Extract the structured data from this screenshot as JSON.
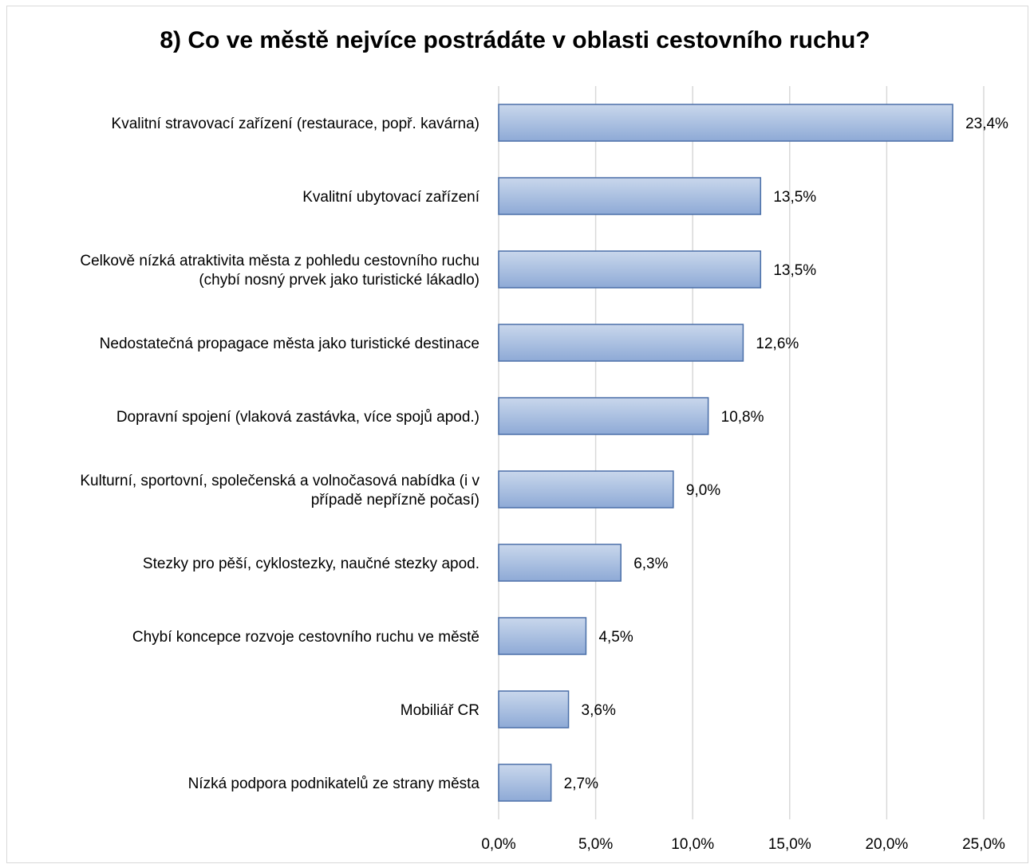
{
  "chart_data": {
    "type": "bar",
    "orientation": "horizontal",
    "title": "8) Co ve městě nejvíce postrádáte v oblasti cestovního ruchu?",
    "categories": [
      [
        "Kvalitní stravovací zařízení (restaurace, popř. kavárna)"
      ],
      [
        "Kvalitní ubytovací zařízení"
      ],
      [
        "Celkově nízká atraktivita města z pohledu cestovního ruchu",
        "(chybí nosný prvek jako turistické lákadlo)"
      ],
      [
        "Nedostatečná propagace města jako turistické destinace"
      ],
      [
        "Dopravní spojení (vlaková zastávka, více spojů apod.)"
      ],
      [
        "Kulturní, sportovní, společenská a volnočasová nabídka (i v",
        "případě nepřízně počasí)"
      ],
      [
        "Stezky pro pěší, cyklostezky, naučné stezky apod."
      ],
      [
        "Chybí koncepce rozvoje cestovního ruchu ve městě"
      ],
      [
        "Mobiliář CR"
      ],
      [
        "Nízká podpora podnikatelů ze strany města"
      ]
    ],
    "values": [
      23.4,
      13.5,
      13.5,
      12.6,
      10.8,
      9.0,
      6.3,
      4.5,
      3.6,
      2.7
    ],
    "value_labels": [
      "23,4%",
      "13,5%",
      "13,5%",
      "12,6%",
      "10,8%",
      "9,0%",
      "6,3%",
      "4,5%",
      "3,6%",
      "2,7%"
    ],
    "xlim": [
      0,
      25
    ],
    "x_ticks": [
      0,
      5,
      10,
      15,
      20,
      25
    ],
    "x_tick_labels": [
      "0,0%",
      "5,0%",
      "10,0%",
      "15,0%",
      "20,0%",
      "25,0%"
    ],
    "grid": true,
    "legend": "none",
    "colors": {
      "bar_fill_top": "#c9d7ec",
      "bar_fill_bottom": "#8eaad6",
      "bar_stroke": "#4a6fa8",
      "grid": "#d9d9d9"
    }
  }
}
